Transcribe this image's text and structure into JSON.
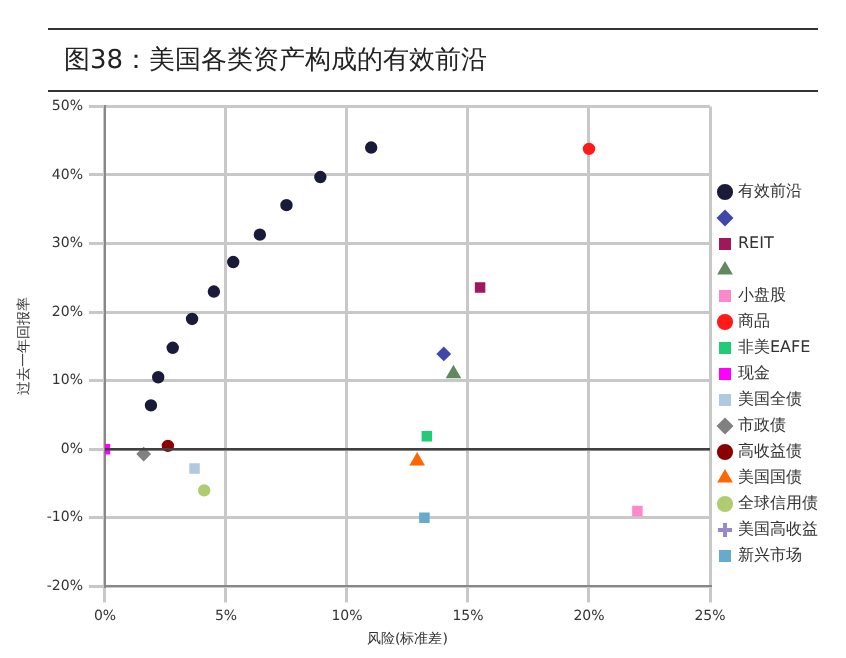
{
  "chart_data": {
    "type": "scatter",
    "title": "图38：美国各类资产构成的有效前沿",
    "xlabel": "风险(标准差)",
    "ylabel": "过去一年回报率",
    "xlim": [
      0,
      25
    ],
    "xticks": [
      {
        "value": 0,
        "label": "0%"
      },
      {
        "value": 5,
        "label": "5%"
      },
      {
        "value": 10,
        "label": "10%"
      },
      {
        "value": 15,
        "label": "15%"
      },
      {
        "value": 20,
        "label": "20%"
      },
      {
        "value": 25,
        "label": "25%"
      }
    ],
    "ylim": [
      -20,
      50
    ],
    "yticks": [
      {
        "value": -20,
        "label": "-20%"
      },
      {
        "value": -10,
        "label": "-10%"
      },
      {
        "value": 0,
        "label": "0%"
      },
      {
        "value": 10,
        "label": "10%"
      },
      {
        "value": 20,
        "label": "20%"
      },
      {
        "value": 30,
        "label": "30%"
      },
      {
        "value": 40,
        "label": "40%"
      },
      {
        "value": 50,
        "label": "50%"
      }
    ],
    "grid": true,
    "legend": "right",
    "ref_lines": [
      {
        "axis": "y",
        "value": 0,
        "color": "#404040"
      }
    ],
    "series": [
      {
        "name": "有效前沿",
        "color": "#1a1a3a",
        "marker": "circle",
        "x": [
          1.9,
          2.2,
          2.8,
          3.6,
          4.5,
          5.3,
          6.4,
          7.5,
          8.9,
          11.0
        ],
        "values": [
          6.4,
          10.5,
          14.8,
          19.0,
          23.0,
          27.3,
          31.3,
          35.6,
          39.7,
          44.0
        ]
      },
      {
        "color": "#3f48a8",
        "marker": "diamond",
        "x": [
          14.0
        ],
        "values": [
          13.9
        ]
      },
      {
        "name": "REIT",
        "color": "#a0185a",
        "marker": "square",
        "x": [
          15.5
        ],
        "values": [
          23.6
        ]
      },
      {
        "color": "#5f8a5f",
        "marker": "triangle",
        "x": [
          14.4
        ],
        "values": [
          11.0
        ]
      },
      {
        "name": "小盘股",
        "color": "#ff88cc",
        "marker": "square",
        "x": [
          22.0
        ],
        "values": [
          -9.0
        ]
      },
      {
        "name": "商品",
        "color": "#ff1a1a",
        "marker": "circle",
        "x": [
          20.0
        ],
        "values": [
          43.8
        ]
      },
      {
        "name": "非美EAFE",
        "color": "#22cc77",
        "marker": "square",
        "x": [
          13.3
        ],
        "values": [
          1.9
        ]
      },
      {
        "name": "现金",
        "color": "#ff00ff",
        "marker": "square",
        "x": [
          0
        ],
        "values": [
          0
        ]
      },
      {
        "name": "美国全债",
        "color": "#b0c8e0",
        "marker": "square",
        "x": [
          3.7
        ],
        "values": [
          -2.8
        ]
      },
      {
        "name": "市政债",
        "color": "#808080",
        "marker": "diamond",
        "x": [
          1.6
        ],
        "values": [
          -0.7
        ]
      },
      {
        "name": "高收益债",
        "color": "#8b0000",
        "marker": "circle",
        "x": [
          2.6
        ],
        "values": [
          0.5
        ]
      },
      {
        "name": "美国国债",
        "color": "#ff6600",
        "marker": "triangle",
        "x": [
          12.9
        ],
        "values": [
          -1.7
        ]
      },
      {
        "name": "全球信用债",
        "color": "#b0cc70",
        "marker": "circle",
        "x": [
          4.1
        ],
        "values": [
          -6.0
        ]
      },
      {
        "name": "美国高收益",
        "color": "#9988cc",
        "marker": "cross",
        "x": [
          null
        ],
        "values": [
          null
        ]
      },
      {
        "name": "新兴市场",
        "color": "#66aacc",
        "marker": "square",
        "x": [
          13.2
        ],
        "values": [
          -10.0
        ]
      }
    ]
  }
}
